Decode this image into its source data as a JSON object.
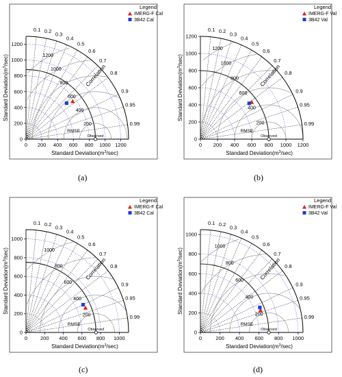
{
  "legend_title": "Legend",
  "chart_data": [
    {
      "type": "scatter",
      "panel_label": "(a)",
      "xlabel": "Standard Deviation(m³/sec)",
      "ylabel": "Standard Deviation(m³/sec)",
      "xlabel_parts": [
        "Standard Deviation(m",
        "3",
        "/sec)"
      ],
      "ylabel_parts": [
        "Standard Deviation(m",
        "3",
        "/sec)"
      ],
      "sd_max": 1300,
      "sd_ticks": [
        0,
        200,
        400,
        600,
        800,
        1000,
        1200
      ],
      "observed_sd": 880,
      "observed_label": "Observed",
      "rmse_title": "RMSE",
      "rmse_levels": [
        200,
        400,
        600,
        800,
        1000,
        1200
      ],
      "correlation_title": "Correlation",
      "correlation_ticks": [
        0.1,
        0.2,
        0.3,
        0.4,
        0.5,
        0.6,
        0.7,
        0.8,
        0.9,
        0.95,
        0.99
      ],
      "legend_position": "top-right",
      "series": [
        {
          "name": "IMERG-F Cal",
          "marker": "triangle",
          "color": "#e41a1c",
          "x": 592,
          "y": 478
        },
        {
          "name": "3B42 Cal",
          "marker": "square",
          "color": "#1f3fd6",
          "x": 515,
          "y": 455
        }
      ]
    },
    {
      "type": "scatter",
      "panel_label": "(b)",
      "xlabel": "Standard Deviation(m³/sec)",
      "ylabel": "Standard Deviation(m³/sec)",
      "xlabel_parts": [
        "Standard Deviation(m",
        "3",
        "/sec)"
      ],
      "ylabel_parts": [
        "Standard Deviation(m",
        "3",
        "/sec)"
      ],
      "sd_max": 1200,
      "sd_ticks": [
        0,
        200,
        400,
        600,
        800,
        1000,
        1200
      ],
      "observed_sd": 800,
      "observed_label": "Observed",
      "rmse_title": "RMSE",
      "rmse_levels": [
        200,
        400,
        600,
        800,
        1000,
        1200
      ],
      "correlation_title": "Correlation",
      "correlation_ticks": [
        0.1,
        0.2,
        0.3,
        0.4,
        0.5,
        0.6,
        0.7,
        0.8,
        0.9,
        0.95,
        0.99
      ],
      "legend_position": "top-right",
      "series": [
        {
          "name": "IMERG-F Val",
          "marker": "triangle",
          "color": "#e41a1c",
          "x": 600,
          "y": 430
        },
        {
          "name": "3B42 Val",
          "marker": "square",
          "color": "#1f3fd6",
          "x": 570,
          "y": 418
        }
      ]
    },
    {
      "type": "scatter",
      "panel_label": "(c)",
      "xlabel": "Standard Deviation(m³/sec)",
      "ylabel": "Standard Deviation(m³/sec)",
      "xlabel_parts": [
        "Standard Deviation(m",
        "3",
        "/sec)"
      ],
      "ylabel_parts": [
        "Standard Deviation(m",
        "3",
        "/sec)"
      ],
      "sd_max": 1100,
      "sd_ticks": [
        0,
        200,
        400,
        600,
        800,
        1000
      ],
      "observed_sd": 750,
      "observed_label": "Observed",
      "rmse_title": "RMSE",
      "rmse_levels": [
        200,
        400,
        600,
        800,
        1000
      ],
      "correlation_title": "Correlation",
      "correlation_ticks": [
        0.1,
        0.2,
        0.3,
        0.4,
        0.5,
        0.6,
        0.7,
        0.8,
        0.9,
        0.95,
        0.99
      ],
      "legend_position": "top-right",
      "series": [
        {
          "name": "IMERG-F Cal",
          "marker": "triangle",
          "color": "#e41a1c",
          "x": 638,
          "y": 262
        },
        {
          "name": "3B42 Cal",
          "marker": "square",
          "color": "#1f3fd6",
          "x": 612,
          "y": 297
        }
      ]
    },
    {
      "type": "scatter",
      "panel_label": "(d)",
      "xlabel": "Standard Deviation(m³/sec)",
      "ylabel": "Standard Deviation(m³/sec)",
      "xlabel_parts": [
        "Standard Deviation(m",
        "3",
        "/sec)"
      ],
      "ylabel_parts": [
        "Standard Deviation(m",
        "3",
        "/sec)"
      ],
      "sd_max": 1050,
      "sd_ticks": [
        0,
        200,
        400,
        600,
        800,
        1000
      ],
      "observed_sd": 700,
      "observed_label": "Observed",
      "rmse_title": "RMSE",
      "rmse_levels": [
        200,
        400,
        600,
        800,
        1000
      ],
      "correlation_title": "Correlation",
      "correlation_ticks": [
        0.1,
        0.2,
        0.3,
        0.4,
        0.5,
        0.6,
        0.7,
        0.8,
        0.9,
        0.95,
        0.99
      ],
      "legend_position": "top-right",
      "series": [
        {
          "name": "IMERG-F Val",
          "marker": "triangle",
          "color": "#e41a1c",
          "x": 615,
          "y": 225
        },
        {
          "name": "3B42 Val",
          "marker": "square",
          "color": "#1f3fd6",
          "x": 608,
          "y": 255
        }
      ]
    }
  ]
}
